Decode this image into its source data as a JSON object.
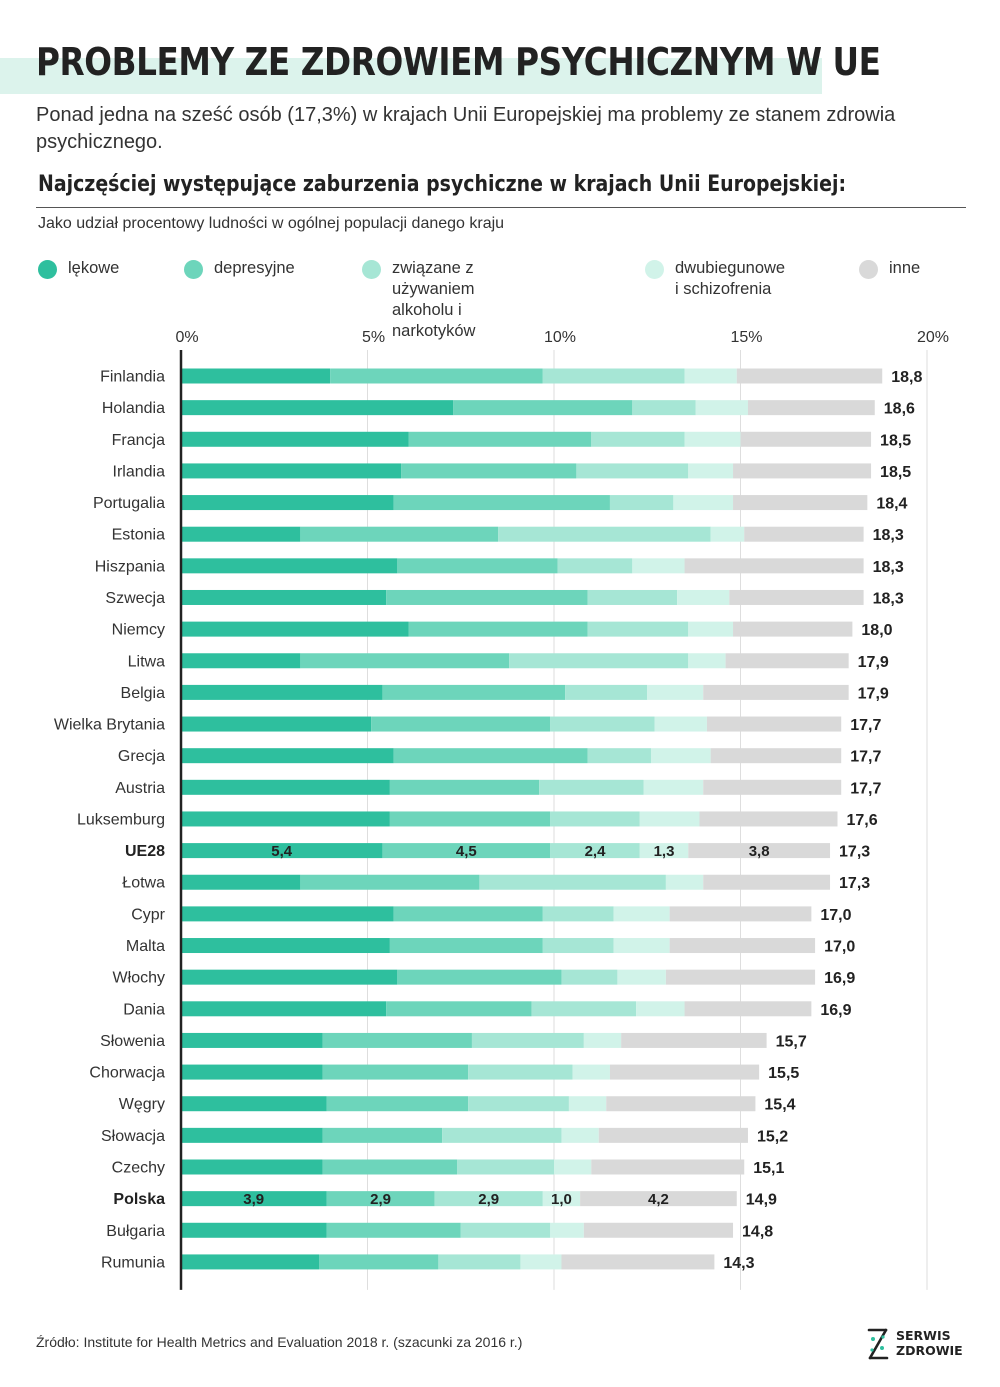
{
  "title": "PROBLEMY ZE ZDROWIEM PSYCHICZNYM W UE",
  "subtitle": "Ponad jedna na sześć osób (17,3%) w krajach Unii Europejskiej ma problemy ze stanem zdrowia psychicznego.",
  "chart_heading": "Najczęściej występujące zaburzenia psychiczne w krajach Unii Europejskiej:",
  "chart_note": "Jako udział procentowy ludności w ogólnej populacji danego kraju",
  "legend": [
    {
      "label": "lękowe",
      "color": "#2ebf9e"
    },
    {
      "label": "depresyjne",
      "color": "#6dd5bb"
    },
    {
      "label": "związane z używaniem\nalkoholu i narkotyków",
      "color": "#a6e6d5"
    },
    {
      "label": "dwubiegunowe\ni schizofrenia",
      "color": "#d1f3e9"
    },
    {
      "label": "inne",
      "color": "#d9d9d9"
    }
  ],
  "source": "Źródło: Institute for Health Metrics and Evaluation 2018 r. (szacunki za 2016 r.)",
  "logo": {
    "text": "SERWIS\nZDROWIE",
    "icon": "serwis-zdrowie-logo-icon"
  },
  "chart_data": {
    "type": "bar",
    "orientation": "horizontal",
    "stacked": true,
    "title": "Najczęściej występujące zaburzenia psychiczne w krajach Unii Europejskiej:",
    "xlabel": "",
    "ylabel": "",
    "xlim": [
      0,
      20
    ],
    "x_ticks": [
      0,
      5,
      10,
      15,
      20
    ],
    "x_tick_labels": [
      "0%",
      "5%",
      "10%",
      "15%",
      "20%"
    ],
    "grid": true,
    "legend_position": "top",
    "series_names": [
      "lękowe",
      "depresyjne",
      "związane z używaniem alkoholu i narkotyków",
      "dwubiegunowe i schizofrenia",
      "inne"
    ],
    "series_colors": [
      "#2ebf9e",
      "#6dd5bb",
      "#a6e6d5",
      "#d1f3e9",
      "#d9d9d9"
    ],
    "rows": [
      {
        "country": "Finlandia",
        "values": [
          4.0,
          5.7,
          3.8,
          1.4,
          3.9
        ],
        "total": "18,8"
      },
      {
        "country": "Holandia",
        "values": [
          7.3,
          4.8,
          1.7,
          1.4,
          3.4
        ],
        "total": "18,6"
      },
      {
        "country": "Francja",
        "values": [
          6.1,
          4.9,
          2.5,
          1.5,
          3.5
        ],
        "total": "18,5"
      },
      {
        "country": "Irlandia",
        "values": [
          5.9,
          4.7,
          3.0,
          1.2,
          3.7
        ],
        "total": "18,5"
      },
      {
        "country": "Portugalia",
        "values": [
          5.7,
          5.8,
          1.7,
          1.6,
          3.6
        ],
        "total": "18,4"
      },
      {
        "country": "Estonia",
        "values": [
          3.2,
          5.3,
          5.7,
          0.9,
          3.2
        ],
        "total": "18,3"
      },
      {
        "country": "Hiszpania",
        "values": [
          5.8,
          4.3,
          2.0,
          1.4,
          4.8
        ],
        "total": "18,3"
      },
      {
        "country": "Szwecja",
        "values": [
          5.5,
          5.4,
          2.4,
          1.4,
          3.6
        ],
        "total": "18,3"
      },
      {
        "country": "Niemcy",
        "values": [
          6.1,
          4.8,
          2.7,
          1.2,
          3.2
        ],
        "total": "18,0"
      },
      {
        "country": "Litwa",
        "values": [
          3.2,
          5.6,
          4.8,
          1.0,
          3.3
        ],
        "total": "17,9"
      },
      {
        "country": "Belgia",
        "values": [
          5.4,
          4.9,
          2.2,
          1.5,
          3.9
        ],
        "total": "17,9"
      },
      {
        "country": "Wielka Brytania",
        "values": [
          5.1,
          4.8,
          2.8,
          1.4,
          3.6
        ],
        "total": "17,7"
      },
      {
        "country": "Grecja",
        "values": [
          5.7,
          5.2,
          1.7,
          1.6,
          3.5
        ],
        "total": "17,7"
      },
      {
        "country": "Austria",
        "values": [
          5.6,
          4.0,
          2.8,
          1.6,
          3.7
        ],
        "total": "17,7"
      },
      {
        "country": "Luksemburg",
        "values": [
          5.6,
          4.3,
          2.4,
          1.6,
          3.7
        ],
        "total": "17,6"
      },
      {
        "country": "UE28",
        "values": [
          5.4,
          4.5,
          2.4,
          1.3,
          3.8
        ],
        "total": "17,3",
        "highlight": true,
        "segment_labels": [
          "5,4",
          "4,5",
          "2,4",
          "1,3",
          "3,8"
        ]
      },
      {
        "country": "Łotwa",
        "values": [
          3.2,
          4.8,
          5.0,
          1.0,
          3.4
        ],
        "total": "17,3"
      },
      {
        "country": "Cypr",
        "values": [
          5.7,
          4.0,
          1.9,
          1.5,
          3.8
        ],
        "total": "17,0"
      },
      {
        "country": "Malta",
        "values": [
          5.6,
          4.1,
          1.9,
          1.5,
          3.9
        ],
        "total": "17,0"
      },
      {
        "country": "Włochy",
        "values": [
          5.8,
          4.4,
          1.5,
          1.3,
          4.0
        ],
        "total": "16,9"
      },
      {
        "country": "Dania",
        "values": [
          5.5,
          3.9,
          2.8,
          1.3,
          3.4
        ],
        "total": "16,9"
      },
      {
        "country": "Słowenia",
        "values": [
          3.8,
          4.0,
          3.0,
          1.0,
          3.9
        ],
        "total": "15,7"
      },
      {
        "country": "Chorwacja",
        "values": [
          3.8,
          3.9,
          2.8,
          1.0,
          4.0
        ],
        "total": "15,5"
      },
      {
        "country": "Węgry",
        "values": [
          3.9,
          3.8,
          2.7,
          1.0,
          4.0
        ],
        "total": "15,4"
      },
      {
        "country": "Słowacja",
        "values": [
          3.8,
          3.2,
          3.2,
          1.0,
          4.0
        ],
        "total": "15,2"
      },
      {
        "country": "Czechy",
        "values": [
          3.8,
          3.6,
          2.6,
          1.0,
          4.1
        ],
        "total": "15,1"
      },
      {
        "country": "Polska",
        "values": [
          3.9,
          2.9,
          2.9,
          1.0,
          4.2
        ],
        "total": "14,9",
        "highlight": true,
        "segment_labels": [
          "3,9",
          "2,9",
          "2,9",
          "1,0",
          "4,2"
        ]
      },
      {
        "country": "Bułgaria",
        "values": [
          3.9,
          3.6,
          2.4,
          0.9,
          4.0
        ],
        "total": "14,8"
      },
      {
        "country": "Rumunia",
        "values": [
          3.7,
          3.2,
          2.2,
          1.1,
          4.1
        ],
        "total": "14,3"
      }
    ]
  }
}
